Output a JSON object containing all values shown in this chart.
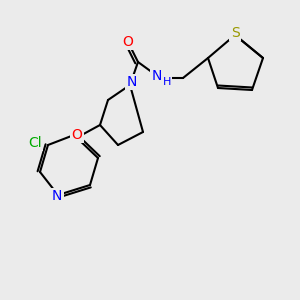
{
  "background_color": "#ebebeb",
  "bond_color": "#000000",
  "bond_width": 1.5,
  "atom_colors": {
    "N": "#0000ff",
    "O": "#ff0000",
    "S": "#999900",
    "Cl": "#00aa00",
    "C": "#000000"
  },
  "font_size": 9
}
